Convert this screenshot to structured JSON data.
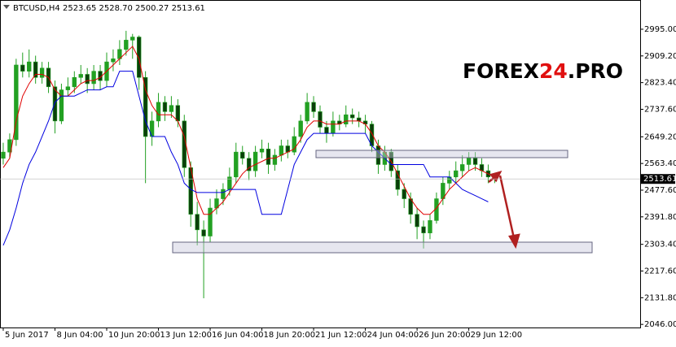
{
  "chart_data": {
    "type": "candlestick",
    "header": "BTCUSD,H4  2523.65 2528.70 2500.27 2513.61",
    "watermark": [
      "FOREX",
      "24",
      ".PRO"
    ],
    "up_color": "#22a022",
    "down_color": "#0b3f0b",
    "candles": [
      [
        2580,
        2630,
        2560,
        2600
      ],
      [
        2600,
        2660,
        2580,
        2640
      ],
      [
        2640,
        2900,
        2620,
        2880
      ],
      [
        2880,
        2920,
        2840,
        2860
      ],
      [
        2860,
        2930,
        2840,
        2890
      ],
      [
        2890,
        2910,
        2820,
        2840
      ],
      [
        2840,
        2890,
        2820,
        2870
      ],
      [
        2870,
        2890,
        2790,
        2810
      ],
      [
        2810,
        2830,
        2660,
        2700
      ],
      [
        2700,
        2820,
        2690,
        2800
      ],
      [
        2800,
        2840,
        2780,
        2810
      ],
      [
        2810,
        2860,
        2790,
        2840
      ],
      [
        2840,
        2880,
        2820,
        2850
      ],
      [
        2850,
        2870,
        2790,
        2820
      ],
      [
        2820,
        2880,
        2800,
        2860
      ],
      [
        2860,
        2880,
        2800,
        2830
      ],
      [
        2830,
        2920,
        2810,
        2890
      ],
      [
        2890,
        2930,
        2860,
        2900
      ],
      [
        2900,
        2960,
        2880,
        2930
      ],
      [
        2930,
        2990,
        2910,
        2960
      ],
      [
        2960,
        2980,
        2900,
        2970
      ],
      [
        2970,
        2975,
        2800,
        2840
      ],
      [
        2840,
        2860,
        2500,
        2650
      ],
      [
        2650,
        2730,
        2620,
        2700
      ],
      [
        2700,
        2790,
        2680,
        2760
      ],
      [
        2760,
        2780,
        2700,
        2730
      ],
      [
        2730,
        2780,
        2710,
        2750
      ],
      [
        2750,
        2770,
        2680,
        2700
      ],
      [
        2700,
        2720,
        2520,
        2550
      ],
      [
        2550,
        2570,
        2360,
        2400
      ],
      [
        2400,
        2440,
        2300,
        2350
      ],
      [
        2350,
        2380,
        2130,
        2330
      ],
      [
        2330,
        2450,
        2310,
        2420
      ],
      [
        2420,
        2480,
        2400,
        2450
      ],
      [
        2450,
        2500,
        2430,
        2480
      ],
      [
        2480,
        2550,
        2460,
        2520
      ],
      [
        2520,
        2630,
        2500,
        2600
      ],
      [
        2600,
        2620,
        2560,
        2580
      ],
      [
        2580,
        2600,
        2510,
        2540
      ],
      [
        2540,
        2620,
        2520,
        2600
      ],
      [
        2600,
        2640,
        2580,
        2610
      ],
      [
        2610,
        2630,
        2530,
        2560
      ],
      [
        2560,
        2610,
        2540,
        2590
      ],
      [
        2590,
        2640,
        2570,
        2620
      ],
      [
        2620,
        2640,
        2580,
        2600
      ],
      [
        2600,
        2680,
        2590,
        2650
      ],
      [
        2650,
        2720,
        2630,
        2700
      ],
      [
        2700,
        2790,
        2690,
        2760
      ],
      [
        2760,
        2780,
        2710,
        2730
      ],
      [
        2730,
        2750,
        2660,
        2680
      ],
      [
        2680,
        2700,
        2630,
        2660
      ],
      [
        2660,
        2730,
        2650,
        2700
      ],
      [
        2700,
        2720,
        2670,
        2690
      ],
      [
        2690,
        2750,
        2680,
        2720
      ],
      [
        2720,
        2740,
        2690,
        2710
      ],
      [
        2710,
        2730,
        2680,
        2700
      ],
      [
        2700,
        2720,
        2660,
        2690
      ],
      [
        2690,
        2700,
        2600,
        2620
      ],
      [
        2620,
        2640,
        2530,
        2560
      ],
      [
        2560,
        2620,
        2540,
        2600
      ],
      [
        2600,
        2610,
        2520,
        2540
      ],
      [
        2540,
        2560,
        2460,
        2480
      ],
      [
        2480,
        2500,
        2420,
        2450
      ],
      [
        2450,
        2470,
        2370,
        2400
      ],
      [
        2400,
        2420,
        2320,
        2360
      ],
      [
        2360,
        2380,
        2290,
        2340
      ],
      [
        2340,
        2400,
        2320,
        2380
      ],
      [
        2380,
        2470,
        2370,
        2450
      ],
      [
        2450,
        2520,
        2430,
        2500
      ],
      [
        2500,
        2540,
        2480,
        2520
      ],
      [
        2520,
        2570,
        2500,
        2540
      ],
      [
        2540,
        2590,
        2520,
        2560
      ],
      [
        2560,
        2600,
        2540,
        2580
      ],
      [
        2580,
        2600,
        2540,
        2560
      ],
      [
        2560,
        2580,
        2520,
        2540
      ],
      [
        2540,
        2560,
        2500,
        2520
      ],
      [
        2523.65,
        2528.7,
        2500.27,
        2513.61
      ]
    ],
    "lines": [
      {
        "color": "#e00000",
        "values": [
          2550,
          2580,
          2700,
          2780,
          2820,
          2850,
          2850,
          2840,
          2800,
          2780,
          2780,
          2800,
          2820,
          2830,
          2830,
          2840,
          2860,
          2880,
          2900,
          2920,
          2940,
          2900,
          2800,
          2750,
          2720,
          2720,
          2720,
          2700,
          2650,
          2550,
          2450,
          2400,
          2400,
          2420,
          2440,
          2470,
          2500,
          2530,
          2550,
          2560,
          2570,
          2580,
          2580,
          2590,
          2600,
          2610,
          2640,
          2680,
          2700,
          2700,
          2690,
          2690,
          2690,
          2700,
          2700,
          2700,
          2690,
          2660,
          2620,
          2600,
          2570,
          2530,
          2490,
          2450,
          2420,
          2400,
          2400,
          2420,
          2450,
          2480,
          2500,
          2520,
          2540,
          2550,
          2540,
          2530,
          2520
        ]
      },
      {
        "color": "#0000e0",
        "values": [
          2300,
          2350,
          2420,
          2500,
          2560,
          2600,
          2650,
          2700,
          2760,
          2780,
          2780,
          2780,
          2790,
          2800,
          2800,
          2800,
          2810,
          2810,
          2860,
          2860,
          2860,
          2780,
          2700,
          2650,
          2650,
          2650,
          2600,
          2560,
          2500,
          2480,
          2470,
          2470,
          2470,
          2470,
          2470,
          2480,
          2480,
          2480,
          2480,
          2480,
          2400,
          2400,
          2400,
          2400,
          2480,
          2560,
          2600,
          2640,
          2660,
          2660,
          2660,
          2660,
          2660,
          2660,
          2660,
          2660,
          2660,
          2620,
          2600,
          2580,
          2560,
          2560,
          2560,
          2560,
          2560,
          2560,
          2520,
          2520,
          2520,
          2520,
          2500,
          2480,
          2470,
          2460,
          2450,
          2440,
          null
        ]
      }
    ],
    "last_price": {
      "value": 2513.61,
      "label": "2513.61"
    },
    "xlim": [
      -0.5,
      98.5
    ],
    "xticks": [
      {
        "value": 0,
        "label": "5 Jun 2017"
      },
      {
        "value": 8,
        "label": "8 Jun 04:00"
      },
      {
        "value": 16,
        "label": "10 Jun 20:00"
      },
      {
        "value": 24,
        "label": "13 Jun 12:00"
      },
      {
        "value": 32,
        "label": "16 Jun 04:00"
      },
      {
        "value": 40,
        "label": "18 Jun 20:00"
      },
      {
        "value": 48,
        "label": "21 Jun 12:00"
      },
      {
        "value": 56,
        "label": "24 Jun 04:00"
      },
      {
        "value": 64,
        "label": "26 Jun 20:00"
      },
      {
        "value": 72,
        "label": "29 Jun 12:00"
      }
    ],
    "ylim": [
      2036,
      3089
    ],
    "yticks": [
      {
        "value": 2995,
        "label": "2995.00"
      },
      {
        "value": 2909.2,
        "label": "2909.20"
      },
      {
        "value": 2823.4,
        "label": "2823.40"
      },
      {
        "value": 2737.6,
        "label": "2737.60"
      },
      {
        "value": 2649.2,
        "label": "2649.20"
      },
      {
        "value": 2563.4,
        "label": "2563.40"
      },
      {
        "value": 2477.6,
        "label": "2477.60"
      },
      {
        "value": 2391.8,
        "label": "2391.80"
      },
      {
        "value": 2303.4,
        "label": "2303.40"
      },
      {
        "value": 2217.6,
        "label": "2217.60"
      },
      {
        "value": 2131.8,
        "label": "2131.80"
      },
      {
        "value": 2046,
        "label": "2046.00"
      }
    ]
  }
}
